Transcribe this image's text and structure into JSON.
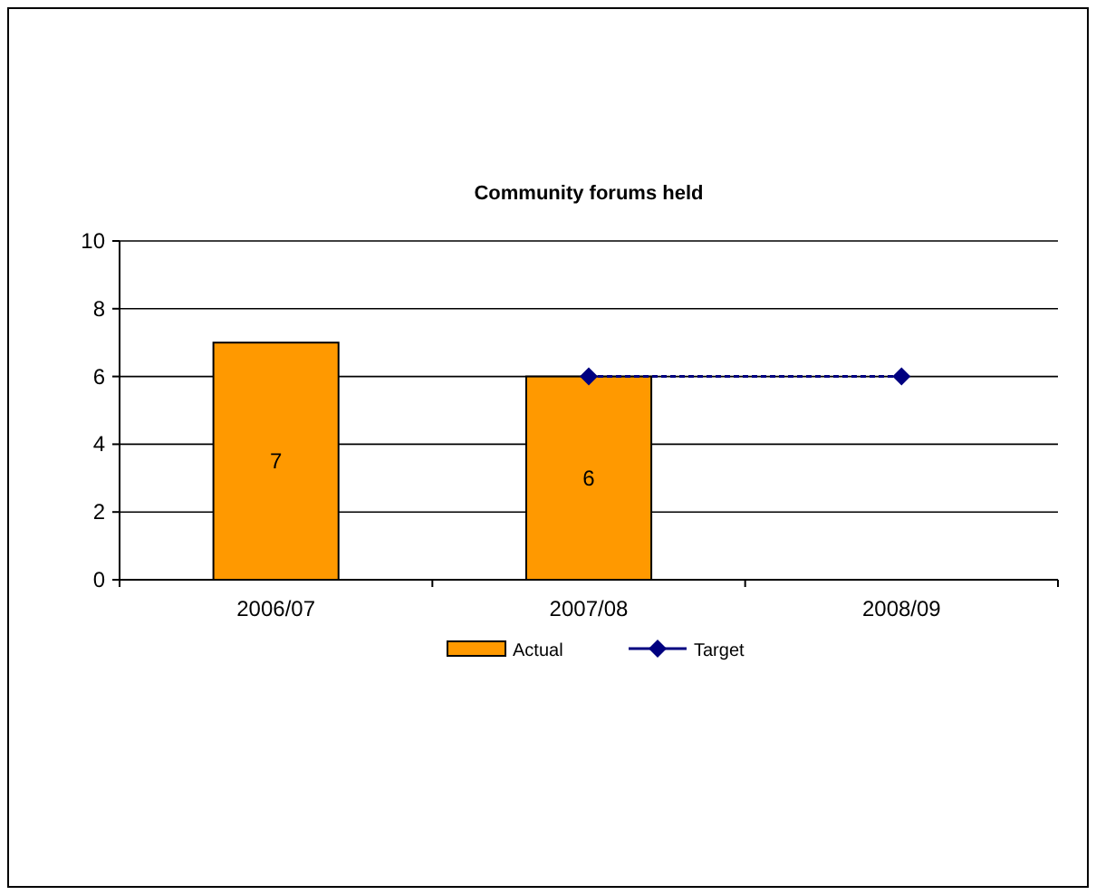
{
  "chart_data": {
    "type": "bar",
    "title": "Community forums held",
    "categories": [
      "2006/07",
      "2007/08",
      "2008/09"
    ],
    "series": [
      {
        "name": "Actual",
        "color": "#ff9900",
        "values": [
          7,
          6,
          null
        ],
        "value_labels": [
          "7",
          "6",
          null
        ]
      },
      {
        "name": "Target",
        "type": "line",
        "color": "#000080",
        "values": [
          null,
          6,
          6
        ],
        "marker": "diamond",
        "line_style": "dashed"
      }
    ],
    "ylim": [
      0,
      10
    ],
    "yticks": [
      0,
      2,
      4,
      6,
      8,
      10
    ],
    "grid": "y",
    "legend": "bottom"
  }
}
